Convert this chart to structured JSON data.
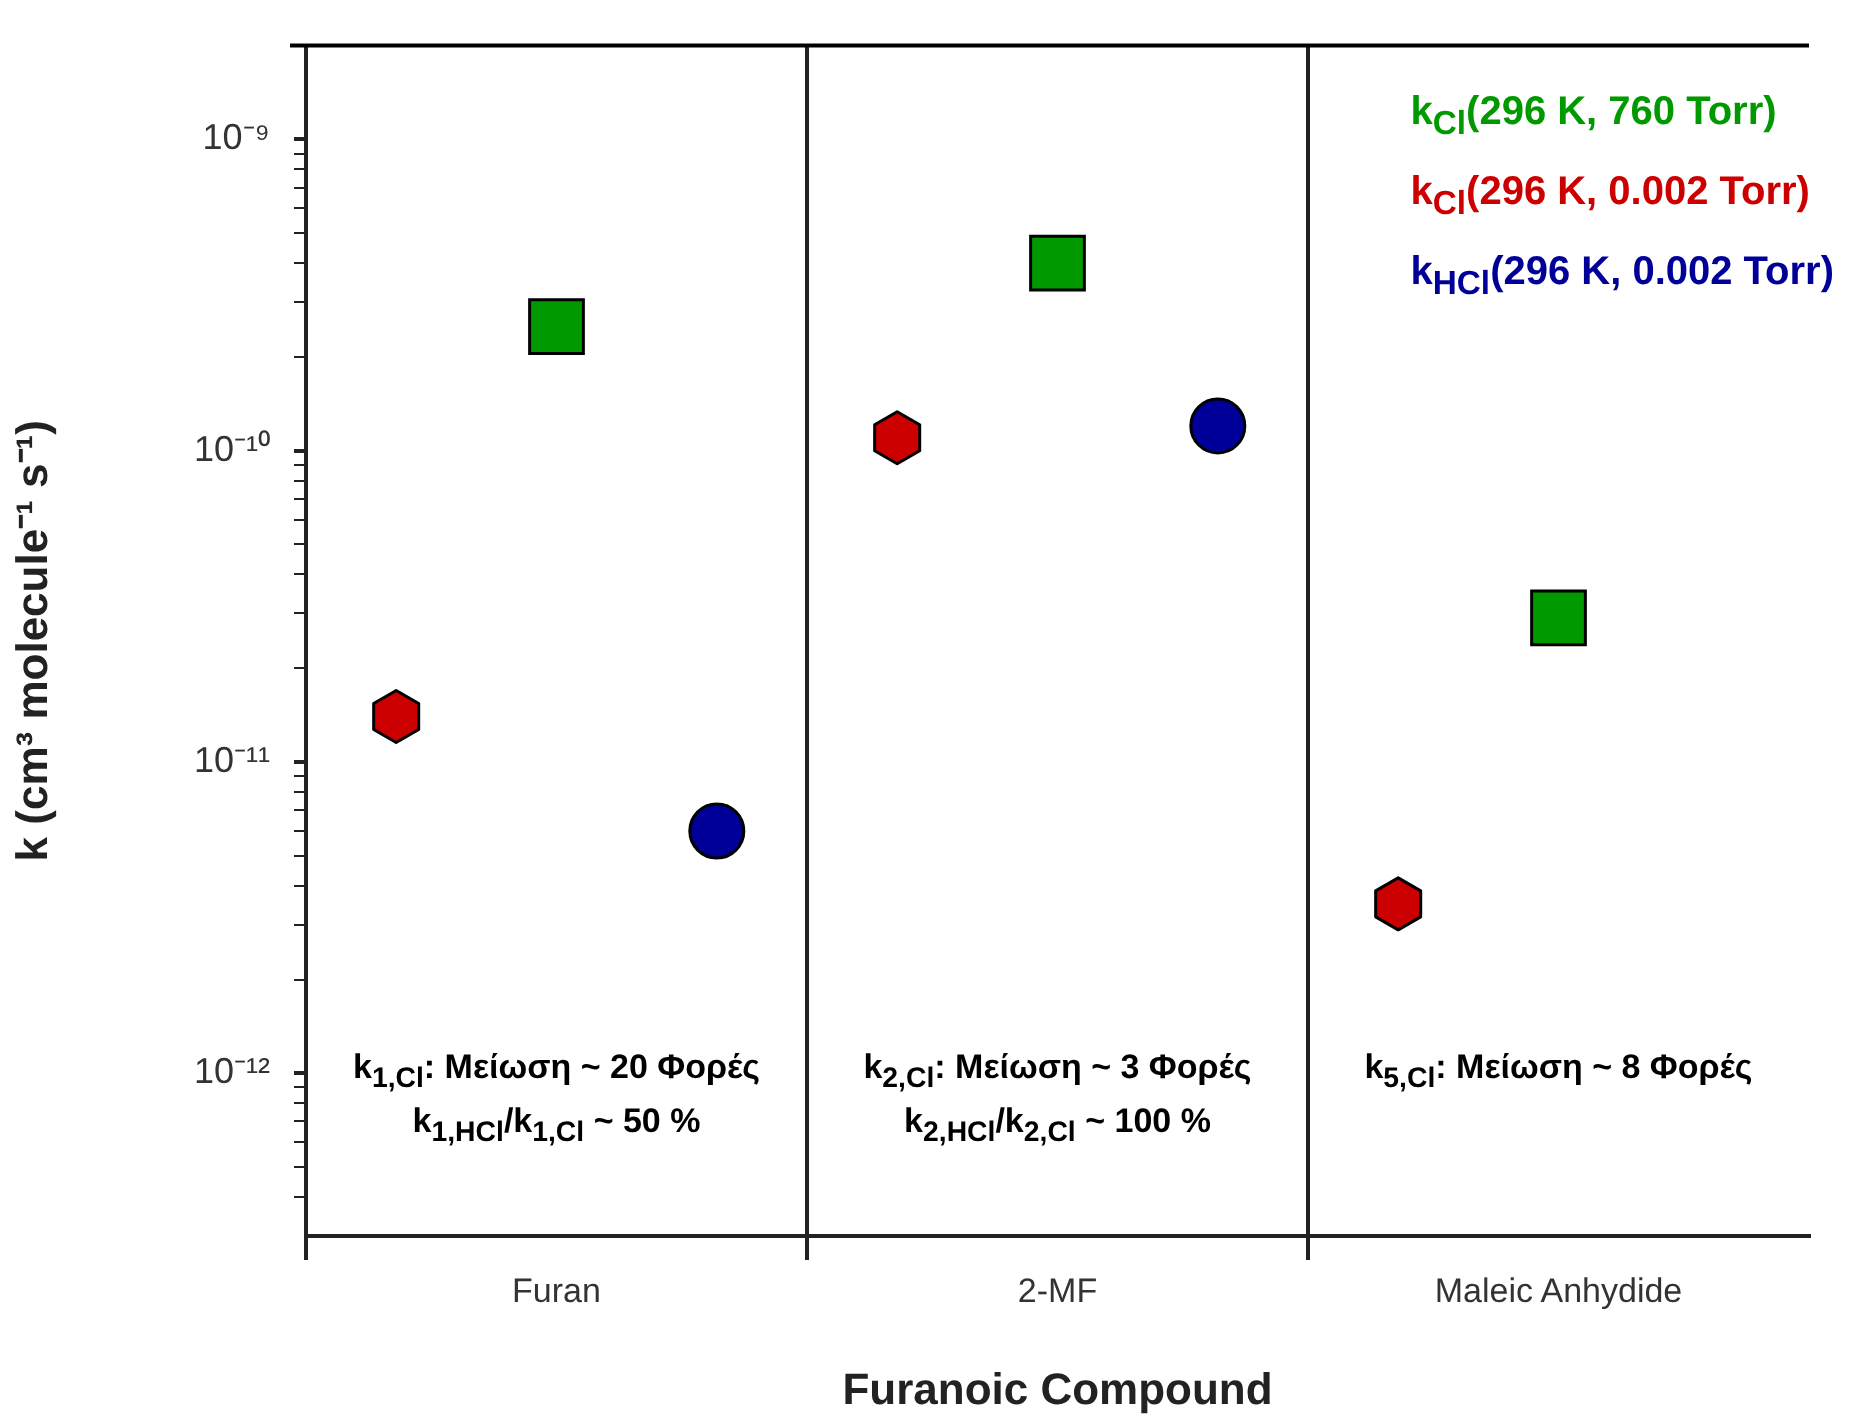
{
  "chart_data": {
    "type": "scatter",
    "xlabel": "Furanoic Compound",
    "ylabel": "k (cm³ molecule⁻¹ s⁻¹)",
    "categories": [
      "Furan",
      "2-MF",
      "Maleic Anhydide"
    ],
    "series": [
      {
        "name": "k$_{Cl}$(296 K, 760 Torr)",
        "color": "#009900",
        "marker": "square",
        "values": [
          2.5e-10,
          4e-10,
          2.9e-11
        ]
      },
      {
        "name": "k$_{Cl}$(296 K, 0.002 Torr)",
        "color": "#cc0000",
        "values": [
          1.4e-11,
          1.1e-10,
          3.5e-12
        ]
      },
      {
        "name": "k$_{HCl}$(296 K, 0.002 Torr)",
        "color": "#000099",
        "marker": "circle",
        "values": [
          6e-12,
          1.2e-10,
          null
        ]
      }
    ],
    "log": "y",
    "ylim": [
      3e-13,
      2e-09
    ],
    "yticks": [
      {
        "value": 4e-13,
        "label": null
      },
      {
        "value": 5e-13,
        "label": null
      },
      {
        "value": 6e-13,
        "label": null
      },
      {
        "value": 7e-13,
        "label": null
      },
      {
        "value": 8e-13,
        "label": null
      },
      {
        "value": 9e-13,
        "label": null
      },
      {
        "value": 1e-12,
        "label": "10⁻¹²"
      },
      {
        "value": 2e-12,
        "label": null
      },
      {
        "value": 3e-12,
        "label": null
      },
      {
        "value": 4e-12,
        "label": null
      },
      {
        "value": 5e-12,
        "label": null
      },
      {
        "value": 6e-12,
        "label": null
      },
      {
        "value": 7e-12,
        "label": null
      },
      {
        "value": 8e-12,
        "label": null
      },
      {
        "value": 9e-12,
        "label": null
      },
      {
        "value": 1e-11,
        "label": "10⁻¹¹"
      },
      {
        "value": 2e-11,
        "label": null
      },
      {
        "value": 3e-11,
        "label": null
      },
      {
        "value": 4e-11,
        "label": null
      },
      {
        "value": 5e-11,
        "label": null
      },
      {
        "value": 6e-11,
        "label": null
      },
      {
        "value": 7e-11,
        "label": null
      },
      {
        "value": 8e-11,
        "label": null
      },
      {
        "value": 9e-11,
        "label": null
      },
      {
        "value": 1e-10,
        "label": "10⁻¹⁰"
      },
      {
        "value": 2e-10,
        "label": null
      },
      {
        "value": 3e-10,
        "label": null
      },
      {
        "value": 4e-10,
        "label": null
      },
      {
        "value": 5e-10,
        "label": null
      },
      {
        "value": 6e-10,
        "label": null
      },
      {
        "value": 7e-10,
        "label": null
      },
      {
        "value": 8e-10,
        "label": null
      },
      {
        "value": 9e-10,
        "label": null
      },
      {
        "value": 1e-09,
        "label": "10⁻⁹"
      }
    ],
    "grid": "x",
    "legend": "top right",
    "annotations": [
      "k$_{1,Cl}$: Μείωση ~ 20 Φορές",
      "k$_{1,HCl}$/k$_{1,Cl}$ ~ 50 %",
      "k$_{2,Cl}$: Μείωση ~ 3 Φορές",
      "k$_{2,HCl}$/k$_{2,Cl}$ ~ 100 %",
      "k$_{5,Cl}$: Μείωση ~ 8 Φορές"
    ]
  }
}
